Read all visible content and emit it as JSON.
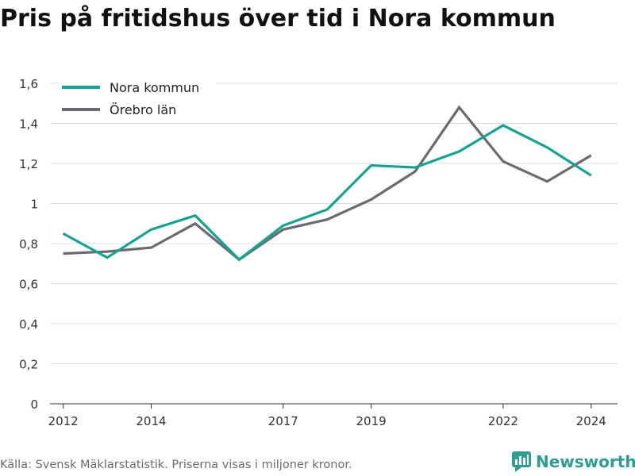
{
  "title": "Pris på fritidshus över tid i Nora kommun",
  "source": "Källa: Svensk Mäklarstatistik. Priserna visas i miljoner kronor.",
  "brand": {
    "name": "Newsworthy",
    "icon": "newsworthy-logo-icon",
    "color": "#2d9e91"
  },
  "chart_data": {
    "type": "line",
    "title": "Pris på fritidshus över tid i Nora kommun",
    "xlabel": "",
    "ylabel": "",
    "xlim": [
      2011.7,
      2024.6
    ],
    "ylim": [
      0,
      1.6
    ],
    "grid": true,
    "legend_position": "top-left",
    "x_ticks": [
      2012,
      2014,
      2017,
      2019,
      2022,
      2024
    ],
    "x_tick_labels": [
      "2012",
      "2014",
      "2017",
      "2019",
      "2022",
      "2024"
    ],
    "y_ticks": [
      0,
      0.2,
      0.4,
      0.6,
      0.8,
      1,
      1.2,
      1.4,
      1.6
    ],
    "y_tick_labels": [
      "0",
      "0,2",
      "0,4",
      "0,6",
      "0,8",
      "1",
      "1,2",
      "1,4",
      "1,6"
    ],
    "series": [
      {
        "name": "Nora kommun",
        "color": "#16a394",
        "x": [
          2012,
          2013,
          2014,
          2015,
          2016,
          2017,
          2018,
          2019,
          2020,
          2021,
          2022,
          2023,
          2024
        ],
        "values": [
          0.85,
          0.73,
          0.87,
          0.94,
          0.72,
          0.89,
          0.97,
          1.19,
          1.18,
          1.26,
          1.39,
          1.28,
          1.14
        ]
      },
      {
        "name": "Örebro län",
        "color": "#6b6a70",
        "x": [
          2012,
          2013,
          2014,
          2015,
          2016,
          2017,
          2018,
          2019,
          2020,
          2021,
          2022,
          2023,
          2024
        ],
        "values": [
          0.75,
          0.76,
          0.78,
          0.9,
          0.72,
          0.87,
          0.92,
          1.02,
          1.16,
          1.48,
          1.21,
          1.11,
          1.24
        ]
      }
    ]
  }
}
